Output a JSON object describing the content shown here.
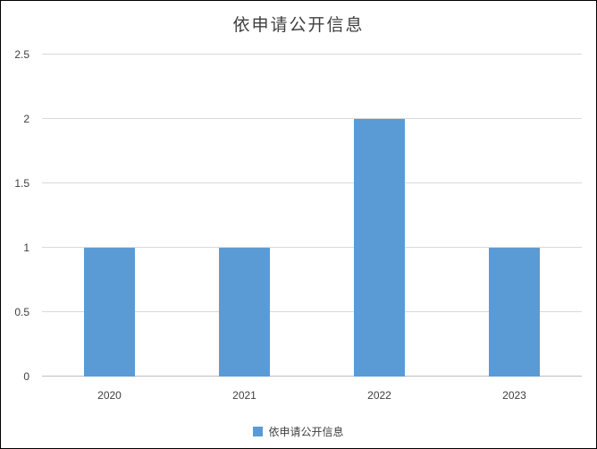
{
  "chart_data": {
    "type": "bar",
    "title": "依申请公开信息",
    "categories": [
      "2020",
      "2021",
      "2022",
      "2023"
    ],
    "values": [
      1,
      1,
      2,
      1
    ],
    "series_name": "依申请公开信息",
    "xlabel": "",
    "ylabel": "",
    "ylim": [
      0,
      2.5
    ],
    "yticks": [
      0,
      0.5,
      1,
      1.5,
      2,
      2.5
    ],
    "ytick_labels": [
      "0",
      "0.5",
      "1",
      "1.5",
      "2",
      "2.5"
    ],
    "grid": true,
    "legend_position": "bottom",
    "bar_color": "#5b9bd5",
    "gridline_color": "#d9d9d9",
    "title_color": "#3f3f3f",
    "tick_color": "#404040",
    "border_color": "#000000"
  }
}
